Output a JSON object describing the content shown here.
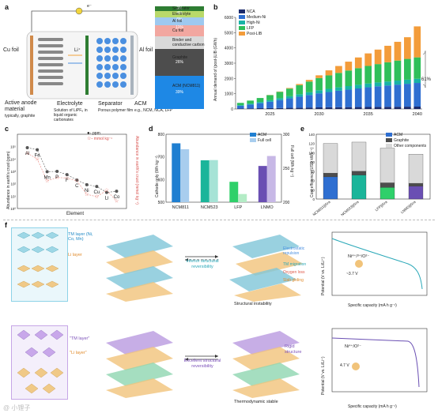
{
  "panel_labels": [
    "a",
    "b",
    "c",
    "d",
    "e",
    "f"
  ],
  "panel_a": {
    "cu_foil": "Cu foil",
    "al_foil": "Al foil",
    "li_ion": "Li⁺",
    "e_symbol": "e⁻",
    "anode_title": "Active anode material",
    "anode_sub": "typically, graphite",
    "electrolyte_title": "Electrolyte",
    "electrolyte_sub": "Solution of LiPF₆ in liquid organic carbonates",
    "separator_title": "Separator",
    "separator_sub": "Porous polymer film",
    "acm_title": "ACM",
    "acm_sub": "e.g., NCM, NCA, LFP",
    "stack_legend": [
      "Separator",
      "Electrolyte",
      "Al foil",
      "Cu foil",
      "Binder and conductive carbon",
      "Graphite",
      "ACM (NCM811)"
    ],
    "stack_pct": [
      "3%",
      "4%",
      "6%",
      "11%",
      "",
      "26%",
      "39%"
    ],
    "stack_colors": [
      "#2e7d32",
      "#b9d96a",
      "#9ec9f0",
      "#f2a7a0",
      "#d9d9d9",
      "#4d4d4d",
      "#1e88e5"
    ]
  },
  "panel_b": {
    "ylabel": "Annual demand of (post-)LIB (GWh)",
    "callout": "61%",
    "legend": [
      "NCA",
      "Medium-Ni",
      "High-Ni",
      "LFP",
      "Post-LIB"
    ]
  },
  "panel_c": {
    "xlabel": "Element",
    "ylabel_left": "Abundance in earth's crust (ppm)",
    "ylabel_right": "Abundance in earth's crust (mmol kg⁻¹)",
    "legend": [
      "ppm",
      "mmol kg⁻¹"
    ]
  },
  "panel_d": {
    "ylabel_left": "Cathode only (Wh kg⁻¹)",
    "ylabel_right": "Full cell (Wh kg⁻¹)",
    "legend": [
      "ACM",
      "Full cell"
    ]
  },
  "panel_e": {
    "ylabel": "Cost efficiency (USD kWh⁻¹)",
    "legend": [
      "ACM",
      "Graphite",
      "Other components"
    ]
  },
  "panel_f": {
    "tm_layer": "TM layer (Ni, Co, Mn)",
    "li_layer": "Li layer",
    "tm_layer_q": "\"TM layer\"",
    "li_layer_q": "\"Li layer\"",
    "inferior": "Inferior structural reversibility",
    "excellent": "Excellent structural reversibility",
    "structural_instability": "Structural instability",
    "thermo_stable": "Thermodynamic stable",
    "electrostatic": "Electrostatic repulsion",
    "tm_migration": "TM migration",
    "oxygen_loss": "Oxygen loss",
    "slab_gliding": "Slab gliding",
    "rigid": "Rigid structure",
    "redox1": "Ni⁴⁺/³⁺/O²⁻",
    "redox2": "Ni⁴⁺/O²⁻",
    "volt1": "~3.7 V",
    "volt2": "4.7 V",
    "plot_xlabel": "Specific capacity (mA h g⁻¹)",
    "plot_ylabel": "Potential (V vs. Li/Li⁺)"
  },
  "watermark": "@ 小锂子",
  "chart_data": [
    {
      "type": "bar",
      "title": "",
      "xlabel": "",
      "ylabel": "Annual demand of (post-)LIB (GWh)",
      "x": [
        2022,
        2023,
        2024,
        2025,
        2026,
        2027,
        2028,
        2029,
        2030,
        2031,
        2032,
        2033,
        2034,
        2035,
        2036,
        2037,
        2038,
        2039,
        2040
      ],
      "xticks": [
        2025,
        2030,
        2035,
        2040
      ],
      "yticks": [
        0,
        1000,
        2000,
        3000,
        4000,
        5000,
        6000
      ],
      "ylim": [
        0,
        6000
      ],
      "series": [
        {
          "name": "NCA",
          "values": [
            30,
            40,
            50,
            55,
            65,
            75,
            85,
            95,
            105,
            110,
            115,
            120,
            125,
            130,
            135,
            140,
            145,
            150,
            155
          ]
        },
        {
          "name": "Medium-Ni",
          "values": [
            180,
            250,
            330,
            420,
            520,
            620,
            720,
            820,
            920,
            1000,
            1080,
            1150,
            1220,
            1290,
            1350,
            1400,
            1450,
            1500,
            1550
          ]
        },
        {
          "name": "High-Ni",
          "values": [
            40,
            60,
            80,
            100,
            120,
            140,
            160,
            180,
            200,
            210,
            220,
            230,
            240,
            250,
            255,
            260,
            265,
            270,
            275
          ]
        },
        {
          "name": "LFP",
          "values": [
            150,
            200,
            260,
            330,
            420,
            500,
            600,
            700,
            800,
            880,
            950,
            1020,
            1090,
            1150,
            1200,
            1260,
            1310,
            1360,
            1400
          ]
        },
        {
          "name": "Post-LIB",
          "values": [
            0,
            0,
            0,
            10,
            20,
            40,
            70,
            110,
            180,
            330,
            450,
            580,
            700,
            820,
            950,
            1080,
            1230,
            1420,
            2030
          ]
        }
      ]
    },
    {
      "type": "scatter",
      "title": "",
      "xlabel": "Element",
      "categories": [
        "Al",
        "Fe",
        "Mn",
        "P",
        "F",
        "C",
        "Ni",
        "Cu",
        "Li",
        "Co"
      ],
      "series": [
        {
          "name": "ppm",
          "values": [
            82000,
            56000,
            950,
            1000,
            550,
            200,
            84,
            60,
            20,
            25
          ]
        },
        {
          "name": "mmol kg⁻¹",
          "values": [
            3040,
            1000,
            17,
            32,
            29,
            17,
            1.4,
            0.9,
            2.9,
            0.4
          ]
        }
      ],
      "yscale": "log"
    },
    {
      "type": "bar",
      "title": "",
      "categories": [
        "NCM811",
        "NCM523",
        "LFP",
        "LNMO"
      ],
      "yticks_left": [
        500,
        600,
        700,
        800
      ],
      "yticks_right": [
        200,
        250,
        300
      ],
      "series": [
        {
          "name": "ACM",
          "values": [
            760,
            685,
            590,
            660
          ]
        },
        {
          "name": "Full cell",
          "values": [
            278,
            262,
            212,
            268
          ]
        }
      ],
      "colors": [
        "#1f7fd1",
        "#1bb59a",
        "#2fd06a",
        "#6a4fb3"
      ]
    },
    {
      "type": "bar",
      "title": "",
      "categories": [
        "NCM811||Gra",
        "NCM523||Gra",
        "LFP||Gra",
        "LNMO||Gra"
      ],
      "ylim": [
        0,
        140
      ],
      "yticks": [
        0,
        20,
        40,
        60,
        80,
        100,
        120,
        140
      ],
      "series": [
        {
          "name": "ACM",
          "values": [
            48,
            52,
            25,
            28
          ]
        },
        {
          "name": "Graphite",
          "values": [
            8,
            8,
            10,
            6
          ]
        },
        {
          "name": "Other components",
          "values": [
            64,
            63,
            75,
            63
          ]
        }
      ]
    }
  ]
}
